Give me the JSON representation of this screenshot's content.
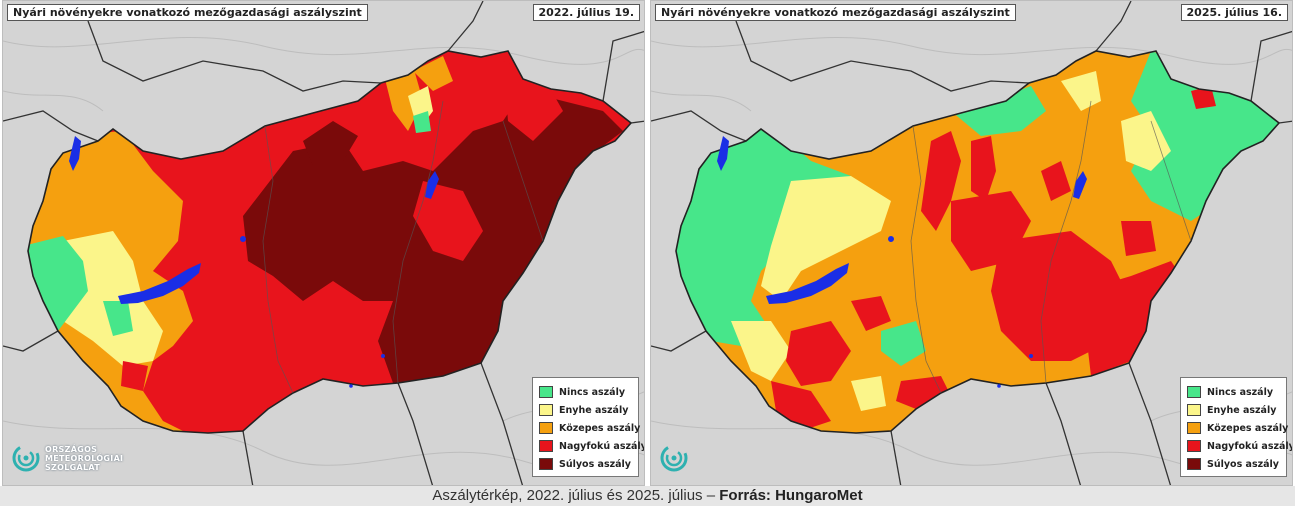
{
  "panels": [
    {
      "title": "Nyári növényekre vonatkozó mezőgazdasági aszályszint",
      "date": "2022. július 19.",
      "logo_lines": [
        "ORSZÁGOS",
        "METEOROLÓGIAI",
        "SZOLGÁLAT"
      ]
    },
    {
      "title": "Nyári növényekre vonatkozó mezőgazdasági aszályszint",
      "date": "2025. július 16."
    }
  ],
  "legend": [
    {
      "label": "Nincs aszály",
      "color": "#47e68a"
    },
    {
      "label": "Enyhe aszály",
      "color": "#fbf58a"
    },
    {
      "label": "Közepes aszály",
      "color": "#f5a00f"
    },
    {
      "label": "Nagyfokú aszály",
      "color": "#e8141c"
    },
    {
      "label": "Súlyos aszály",
      "color": "#7a0a0a"
    }
  ],
  "colors": {
    "background_terrain": "#d4d4d4",
    "water": "#1a2ee6",
    "border_line": "#2b2b2b"
  },
  "caption": {
    "text": "Aszálytérkép, 2022. július és 2025. július – ",
    "source": "Forrás: HungaroMet"
  }
}
